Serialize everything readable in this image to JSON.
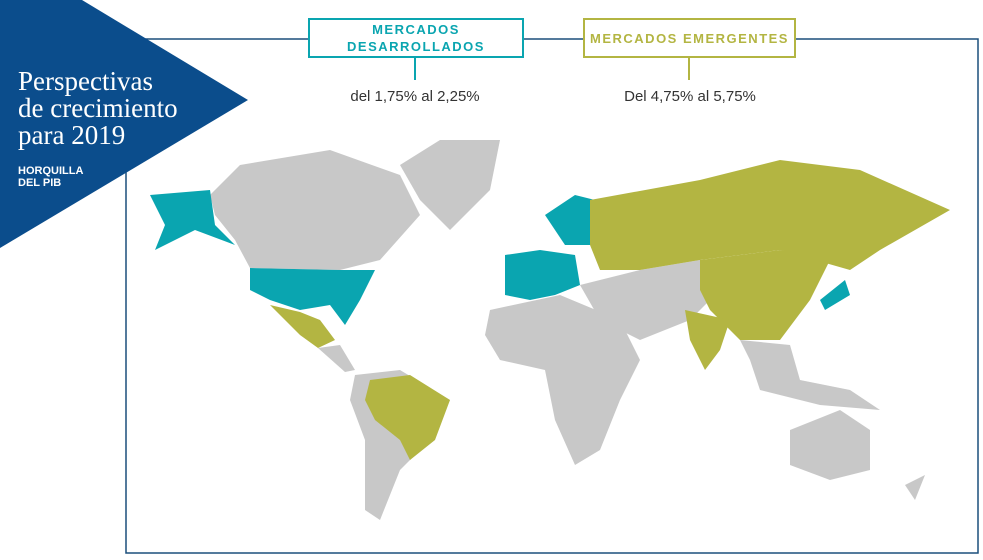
{
  "header": {
    "title_lines": [
      "Perspectivas",
      "de crecimiento",
      "para 2019"
    ],
    "subtitle_lines": [
      "HORQUILLA",
      "DEL PIB"
    ]
  },
  "legend": [
    {
      "label_lines": [
        "MERCADOS",
        "DESARROLLADOS"
      ],
      "range": "del 1,75% al 2,25%"
    },
    {
      "label_lines": [
        "MERCADOS EMERGENTES"
      ],
      "range": "Del 4,75% al 5,75%"
    }
  ]
}
